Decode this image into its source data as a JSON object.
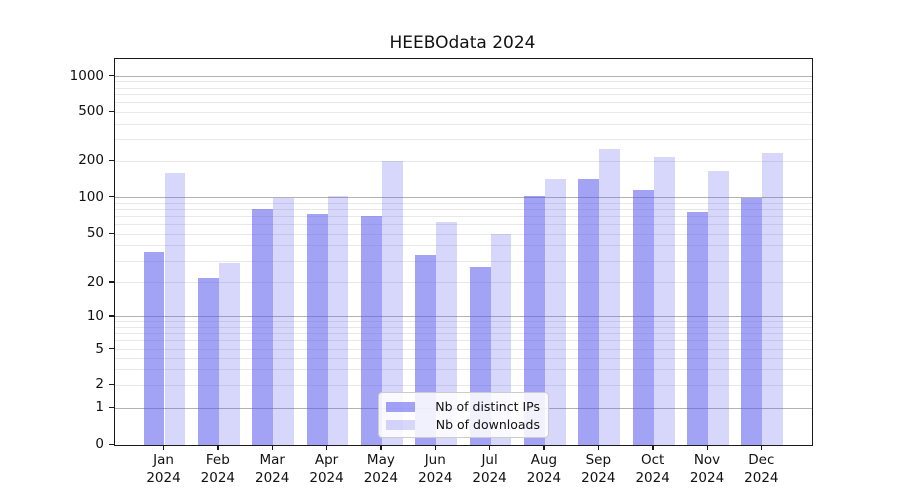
{
  "chart_data": {
    "type": "bar",
    "title": "HEEBOdata 2024",
    "categories": [
      "Jan 2024",
      "Feb 2024",
      "Mar 2024",
      "Apr 2024",
      "May 2024",
      "Jun 2024",
      "Jul 2024",
      "Aug 2024",
      "Sep 2024",
      "Oct 2024",
      "Nov 2024",
      "Dec 2024"
    ],
    "series": [
      {
        "name": "Nb of distinct IPs",
        "fill": "rgba(88,88,238,0.55)",
        "approx_hex": "#a4a4f4",
        "values": [
          36,
          22,
          80,
          73,
          70,
          34,
          27,
          102,
          143,
          115,
          76,
          99
        ]
      },
      {
        "name": "Nb of downloads",
        "fill": "rgba(88,88,238,0.24)",
        "approx_hex": "#dcdcf8",
        "values": [
          160,
          29,
          100,
          103,
          200,
          63,
          50,
          142,
          250,
          215,
          165,
          232
        ]
      }
    ],
    "yscale": "symlog",
    "yticks": [
      0,
      1,
      2,
      5,
      10,
      20,
      50,
      100,
      200,
      500,
      1000
    ],
    "ylim": [
      0,
      1400
    ],
    "grid": "horizontal, log majors and minors",
    "legend_position": "lower center",
    "colors": {
      "grid_major": "#b2b2b2",
      "grid_minor": "#e8e8e8",
      "spine": "#1a1a1a",
      "text": "#111111"
    }
  }
}
